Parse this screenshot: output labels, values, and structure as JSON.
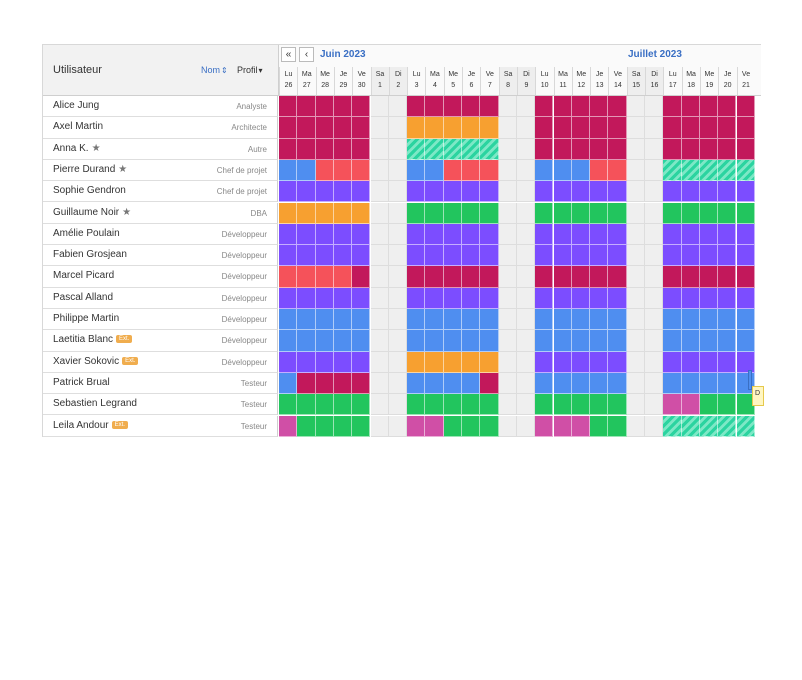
{
  "header": {
    "user_col_label": "Utilisateur",
    "sort_nom_label": "Nom",
    "sort_profil_label": "Profil",
    "nav_first_label": "«",
    "nav_prev_label": "‹"
  },
  "months": [
    "Juin 2023",
    "Juillet 2023"
  ],
  "days": [
    {
      "abbr": "Lu",
      "num": "26",
      "weekend": false
    },
    {
      "abbr": "Ma",
      "num": "27",
      "weekend": false
    },
    {
      "abbr": "Me",
      "num": "28",
      "weekend": false
    },
    {
      "abbr": "Je",
      "num": "29",
      "weekend": false
    },
    {
      "abbr": "Ve",
      "num": "30",
      "weekend": false
    },
    {
      "abbr": "Sa",
      "num": "1",
      "weekend": true
    },
    {
      "abbr": "Di",
      "num": "2",
      "weekend": true
    },
    {
      "abbr": "Lu",
      "num": "3",
      "weekend": false
    },
    {
      "abbr": "Ma",
      "num": "4",
      "weekend": false
    },
    {
      "abbr": "Me",
      "num": "5",
      "weekend": false
    },
    {
      "abbr": "Je",
      "num": "6",
      "weekend": false
    },
    {
      "abbr": "Ve",
      "num": "7",
      "weekend": false
    },
    {
      "abbr": "Sa",
      "num": "8",
      "weekend": true
    },
    {
      "abbr": "Di",
      "num": "9",
      "weekend": true
    },
    {
      "abbr": "Lu",
      "num": "10",
      "weekend": false
    },
    {
      "abbr": "Ma",
      "num": "11",
      "weekend": false
    },
    {
      "abbr": "Me",
      "num": "12",
      "weekend": false
    },
    {
      "abbr": "Je",
      "num": "13",
      "weekend": false
    },
    {
      "abbr": "Ve",
      "num": "14",
      "weekend": false
    },
    {
      "abbr": "Sa",
      "num": "15",
      "weekend": true
    },
    {
      "abbr": "Di",
      "num": "16",
      "weekend": true
    },
    {
      "abbr": "Lu",
      "num": "17",
      "weekend": false
    },
    {
      "abbr": "Ma",
      "num": "18",
      "weekend": false
    },
    {
      "abbr": "Me",
      "num": "19",
      "weekend": false
    },
    {
      "abbr": "Je",
      "num": "20",
      "weekend": false
    },
    {
      "abbr": "Ve",
      "num": "21",
      "weekend": false
    }
  ],
  "palette": {
    "M": "#c2185b",
    "O": "#f7a030",
    "S": "#2bd4a0",
    "B": "#4f8ef0",
    "R": "#f5525a",
    "P": "#7c4dff",
    "G": "#22c55e",
    "K": "#d04fa6",
    "W": "#ffffff"
  },
  "users": [
    {
      "name": "Alice Jung",
      "role": "Analyste",
      "star": false,
      "ext": false,
      "cells": "MMMMM..MMMMM..MMMMM..MMMMM"
    },
    {
      "name": "Axel Martin",
      "role": "Architecte",
      "star": false,
      "ext": false,
      "cells": "MMMMM..OOOOO..MMMMM..MMMMM"
    },
    {
      "name": "Anna K.",
      "role": "Autre",
      "star": true,
      "ext": false,
      "cells": "MMMMM..SSSSS..MMMMM..MMMMM"
    },
    {
      "name": "Pierre Durand",
      "role": "Chef de projet",
      "star": true,
      "ext": false,
      "cells": "BBRRR..BBRRR..BBBRR..SSSSS"
    },
    {
      "name": "Sophie Gendron",
      "role": "Chef de projet",
      "star": false,
      "ext": false,
      "cells": "PPPPP..PPPPP..PPPPP..PPPPP"
    },
    {
      "name": "Guillaume Noir",
      "role": "DBA",
      "star": true,
      "ext": false,
      "cells": "OOOOO..GGGGG..GGGGG..GGGGG"
    },
    {
      "name": "Amélie Poulain",
      "role": "Développeur",
      "star": false,
      "ext": false,
      "cells": "PPPPP..PPPPP..PPPPP..PPPPP"
    },
    {
      "name": "Fabien Grosjean",
      "role": "Développeur",
      "star": false,
      "ext": false,
      "cells": "PPPPP..PPPPP..PPPPP..PPPPP"
    },
    {
      "name": "Marcel Picard",
      "role": "Développeur",
      "star": false,
      "ext": false,
      "cells": "RRRRM..MMMMM..MMMMM..MMMMM"
    },
    {
      "name": "Pascal Alland",
      "role": "Développeur",
      "star": false,
      "ext": false,
      "cells": "PPPPP..PPPPP..PPPPP..PPPPP"
    },
    {
      "name": "Philippe Martin",
      "role": "Développeur",
      "star": false,
      "ext": false,
      "cells": "BBBBB..BBBBB..BBBBB..BBBBB"
    },
    {
      "name": "Laetitia Blanc",
      "role": "Développeur",
      "star": false,
      "ext": true,
      "cells": "BBBBB..BBBBB..BBBBB..BBBBB"
    },
    {
      "name": "Xavier Sokovic",
      "role": "Développeur",
      "star": false,
      "ext": true,
      "cells": "PPPPP..OOOOO..PPPPP..PPPPP"
    },
    {
      "name": "Patrick Brual",
      "role": "Testeur",
      "star": false,
      "ext": false,
      "cells": "BMMMM..BBBBM..BBBBB..BBBBB"
    },
    {
      "name": "Sebastien Legrand",
      "role": "Testeur",
      "star": false,
      "ext": false,
      "cells": "GGGGG..GGGGG..GGGGG..KKGGG"
    },
    {
      "name": "Leila Andour",
      "role": "Testeur",
      "star": false,
      "ext": true,
      "cells": "KGGGG..KKGGG..KKKGG..SSSSS"
    }
  ],
  "ext_label": "Ext.",
  "tooltip_text": "D"
}
